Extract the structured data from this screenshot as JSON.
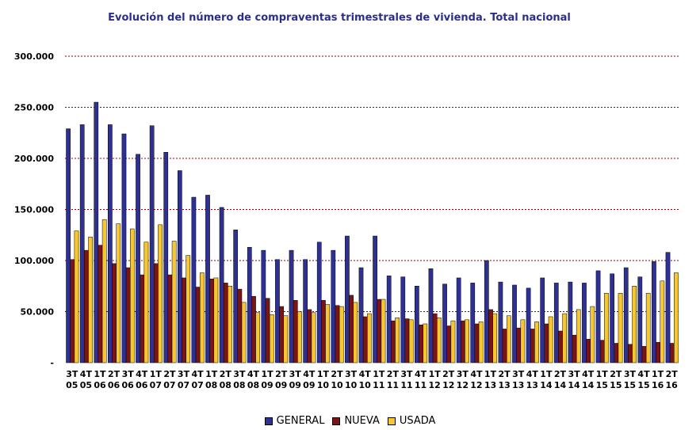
{
  "chart_data": {
    "type": "bar",
    "title": "Evolución del número de compraventas trimestrales de vivienda. Total nacional",
    "xlabel": "",
    "ylabel": "",
    "ylim": [
      0,
      300000
    ],
    "yticks": [
      0,
      50000,
      100000,
      150000,
      200000,
      250000,
      300000
    ],
    "ytick_labels": [
      "-",
      "50.000",
      "100.000",
      "150.000",
      "200.000",
      "250.000",
      "300.000"
    ],
    "grid": true,
    "legend_position": "bottom",
    "categories": [
      [
        "3T",
        "05"
      ],
      [
        "4T",
        "05"
      ],
      [
        "1T",
        "06"
      ],
      [
        "2T",
        "06"
      ],
      [
        "3T",
        "06"
      ],
      [
        "4T",
        "06"
      ],
      [
        "1T",
        "07"
      ],
      [
        "2T",
        "07"
      ],
      [
        "3T",
        "07"
      ],
      [
        "4T",
        "07"
      ],
      [
        "1T",
        "08"
      ],
      [
        "2T",
        "08"
      ],
      [
        "3T",
        "08"
      ],
      [
        "4T",
        "08"
      ],
      [
        "1T",
        "09"
      ],
      [
        "2T",
        "09"
      ],
      [
        "3T",
        "09"
      ],
      [
        "4T",
        "09"
      ],
      [
        "1T",
        "10"
      ],
      [
        "2T",
        "10"
      ],
      [
        "3T",
        "10"
      ],
      [
        "4T",
        "10"
      ],
      [
        "1T",
        "11"
      ],
      [
        "2T",
        "11"
      ],
      [
        "3T",
        "11"
      ],
      [
        "4T",
        "11"
      ],
      [
        "1T",
        "12"
      ],
      [
        "2T",
        "12"
      ],
      [
        "3T",
        "12"
      ],
      [
        "4T",
        "12"
      ],
      [
        "1T",
        "13"
      ],
      [
        "2T",
        "13"
      ],
      [
        "3T",
        "13"
      ],
      [
        "4T",
        "13"
      ],
      [
        "1T",
        "14"
      ],
      [
        "2T",
        "14"
      ],
      [
        "3T",
        "14"
      ],
      [
        "4T",
        "14"
      ],
      [
        "1T",
        "15"
      ],
      [
        "2T",
        "15"
      ],
      [
        "3T",
        "15"
      ],
      [
        "4T",
        "15"
      ],
      [
        "1T",
        "16"
      ],
      [
        "2T",
        "16"
      ]
    ],
    "series": [
      {
        "name": "GENERAL",
        "color": "#2e3192",
        "values": [
          229000,
          233000,
          255000,
          233000,
          224000,
          204000,
          232000,
          206000,
          188000,
          162000,
          164000,
          152000,
          130000,
          113000,
          110000,
          101000,
          110000,
          101000,
          118000,
          110000,
          124000,
          93000,
          124000,
          85000,
          84000,
          75000,
          92000,
          77000,
          83000,
          78000,
          100000,
          79000,
          76000,
          73000,
          83000,
          78000,
          79000,
          78000,
          90000,
          87000,
          93000,
          84000,
          99000,
          108000
        ]
      },
      {
        "name": "NUEVA",
        "color": "#7b1416",
        "values": [
          101000,
          110000,
          115000,
          97000,
          93000,
          86000,
          97000,
          86000,
          83000,
          74000,
          82000,
          78000,
          72000,
          65000,
          63000,
          55000,
          61000,
          52000,
          61000,
          56000,
          66000,
          45000,
          62000,
          41000,
          43000,
          37000,
          48000,
          36000,
          41000,
          38000,
          52000,
          33000,
          34000,
          33000,
          38000,
          31000,
          27000,
          23000,
          22000,
          19000,
          18000,
          16000,
          20000,
          19000
        ]
      },
      {
        "name": "USADA",
        "color": "#f7c631",
        "values": [
          129000,
          123000,
          140000,
          136000,
          131000,
          118000,
          135000,
          119000,
          105000,
          88000,
          83000,
          75000,
          59000,
          49000,
          47000,
          46000,
          50000,
          49000,
          57000,
          55000,
          59000,
          48000,
          62000,
          44000,
          42000,
          38000,
          44000,
          41000,
          42000,
          40000,
          48000,
          46000,
          42000,
          40000,
          45000,
          48000,
          52000,
          55000,
          68000,
          68000,
          75000,
          68000,
          80000,
          88000
        ]
      }
    ]
  }
}
